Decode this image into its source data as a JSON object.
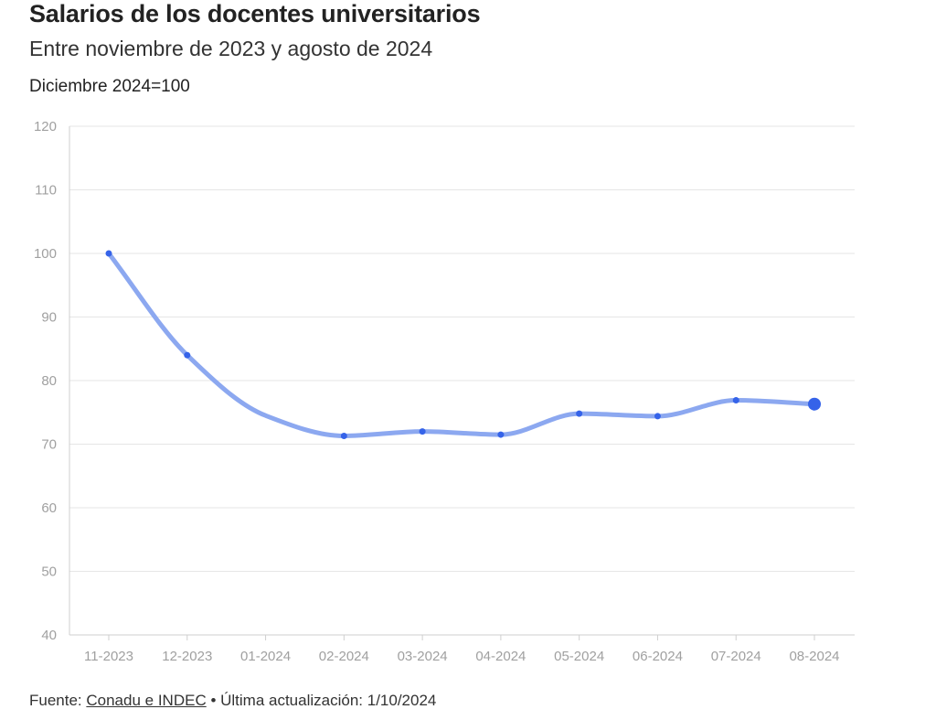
{
  "chart_data": {
    "type": "line",
    "title": "Salarios de los docentes universitarios",
    "subtitle": "Entre noviembre de 2023 y agosto de 2024",
    "ylabel": "Diciembre 2024=100",
    "xlabel": "",
    "categories": [
      "11-2023",
      "12-2023",
      "01-2024",
      "02-2024",
      "03-2024",
      "04-2024",
      "05-2024",
      "06-2024",
      "07-2024",
      "08-2024"
    ],
    "series": [
      {
        "values": [
          100,
          84,
          74.5,
          71.3,
          72,
          71.5,
          74.8,
          74.4,
          76.9,
          76.3
        ],
        "marked": [
          true,
          true,
          false,
          true,
          true,
          true,
          true,
          true,
          true,
          true
        ],
        "color": "#8ca8f0",
        "marker_color": "#3563e9"
      }
    ],
    "ylim": [
      40,
      120
    ],
    "yticks": [
      "40",
      "50",
      "60",
      "70",
      "80",
      "90",
      "100",
      "110",
      "120"
    ],
    "grid": true,
    "legend": "none"
  },
  "footer": {
    "prefix": "Fuente: ",
    "source_link": "Conadu e INDEC",
    "suffix": " • Última actualización: 1/10/2024"
  }
}
